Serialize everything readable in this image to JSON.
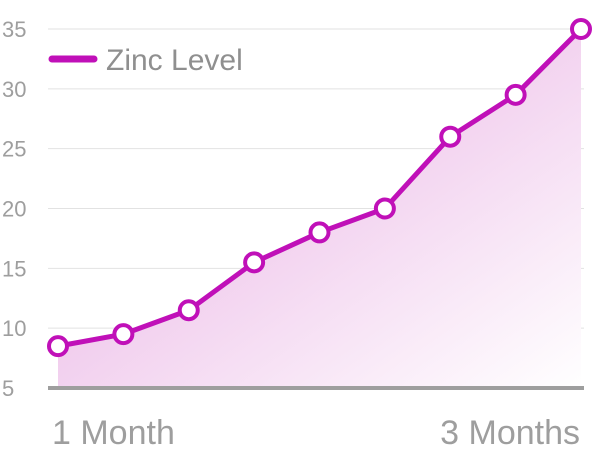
{
  "chart_data": {
    "type": "area",
    "title": "",
    "xlabel": "",
    "ylabel": "",
    "ylim": [
      5,
      35
    ],
    "y_ticks": [
      5,
      10,
      15,
      20,
      25,
      30,
      35
    ],
    "x_tick_labels": [
      "1 Month",
      "3 Months"
    ],
    "grid": "horizontal",
    "legend_placement": "top-left",
    "series": [
      {
        "name": "Zinc Level",
        "color": "#c010b8",
        "values": [
          8.5,
          9.5,
          11.5,
          15.5,
          18.0,
          20.0,
          26.0,
          29.5,
          35.0
        ]
      }
    ]
  },
  "colors": {
    "line": "#c010b8",
    "fill_top": "#e6a6e0",
    "fill_bottom": "#ffffff",
    "grid": "#e2e2e2",
    "baseline": "#9e9e9e",
    "text": "#9e9e9e"
  }
}
